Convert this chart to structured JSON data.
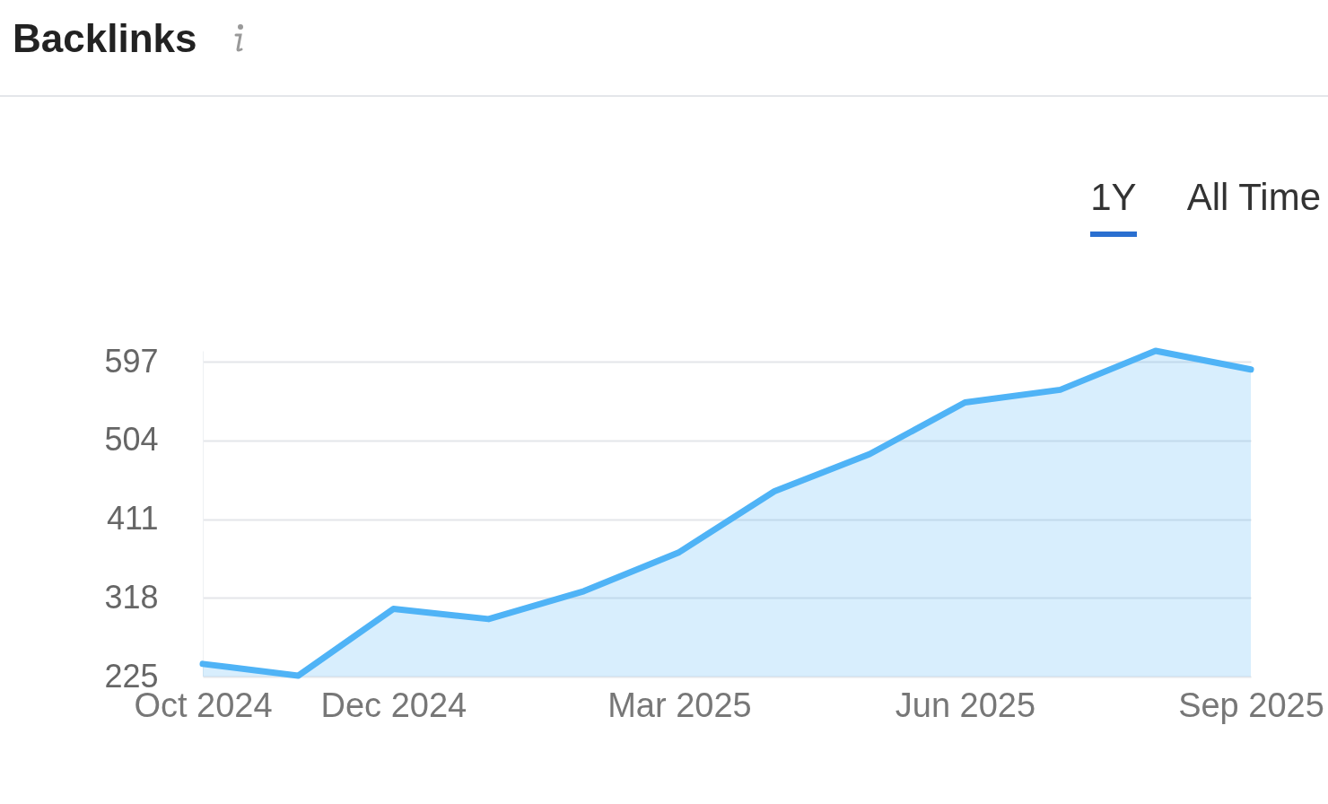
{
  "chart_data": {
    "type": "area",
    "title": "Backlinks",
    "annotations": [
      "1Y",
      "All Time"
    ],
    "categories": [
      "Oct 2024",
      null,
      "Dec 2024",
      null,
      null,
      "Mar 2025",
      null,
      null,
      "Jun 2025",
      null,
      null,
      "Sep 2025"
    ],
    "series": [
      {
        "color": "#4fb3f6",
        "values": [
          240,
          226,
          305,
          293,
          326,
          372,
          444,
          488,
          549,
          564,
          610,
          588
        ]
      }
    ],
    "ylim": [
      225,
      610
    ],
    "yticks": [
      225,
      318,
      411,
      504,
      597
    ],
    "grid": "y"
  }
}
